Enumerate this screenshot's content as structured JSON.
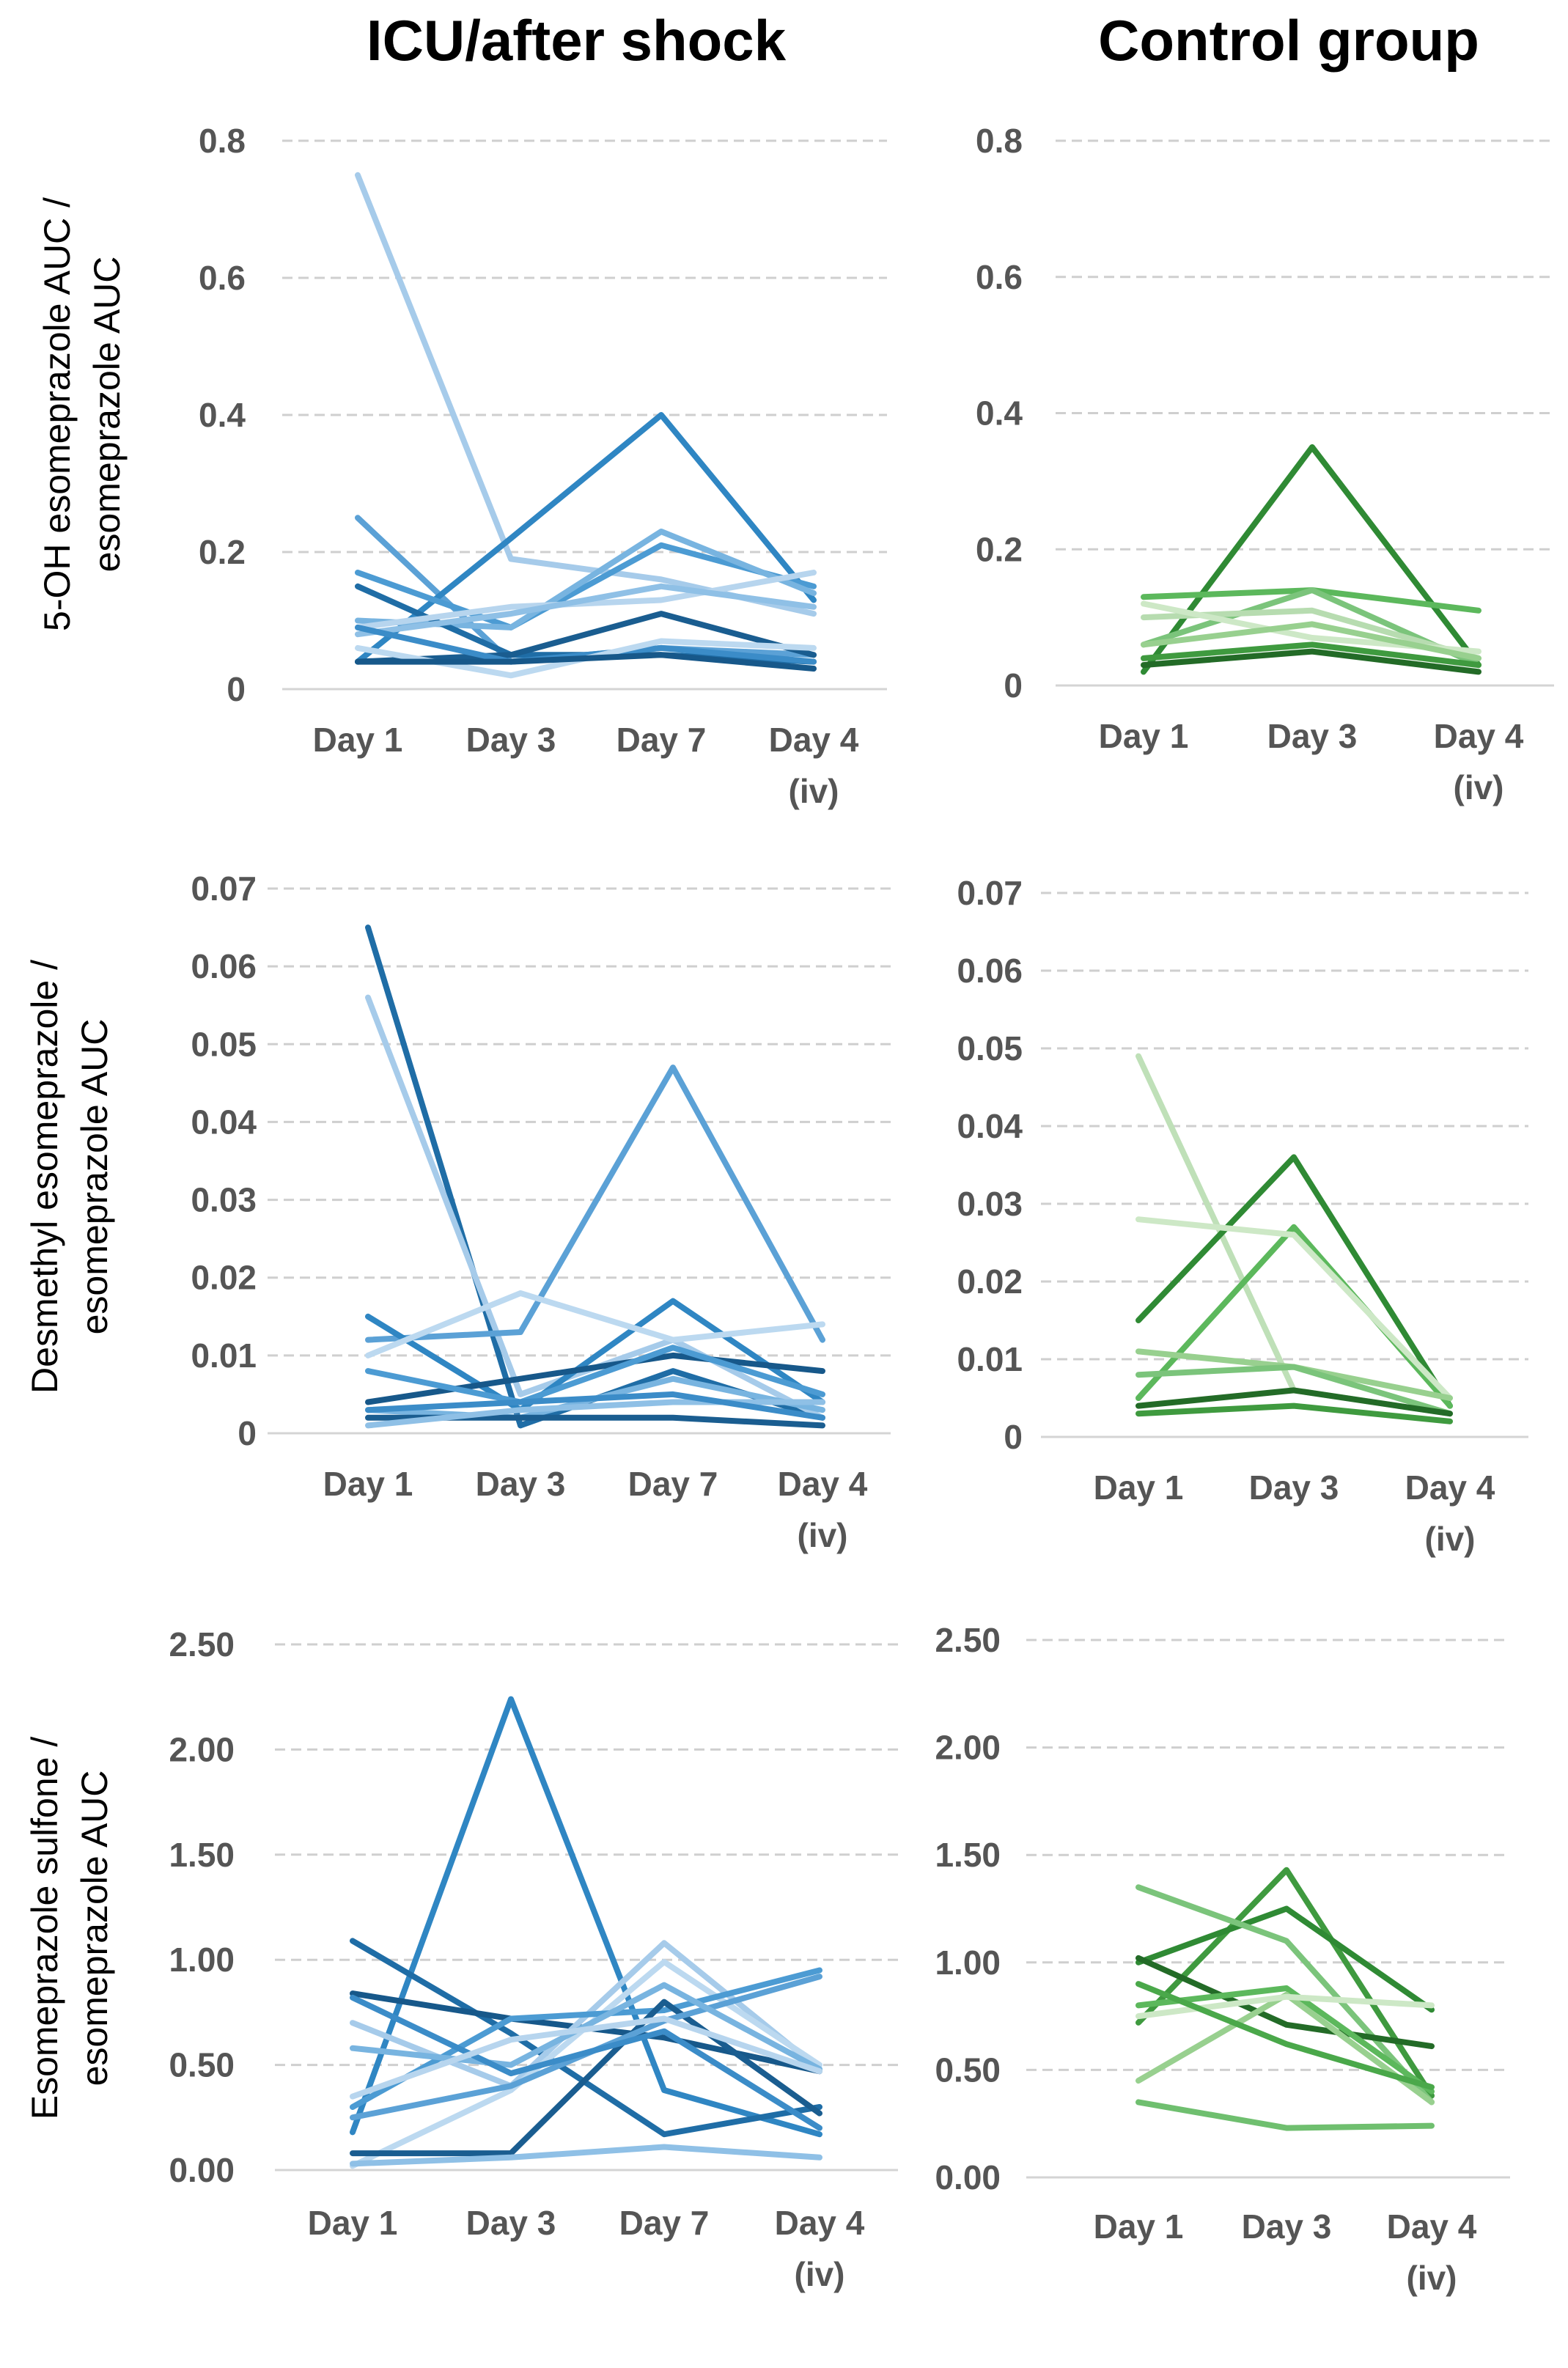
{
  "columns": [
    "ICU/after shock",
    "Control group"
  ],
  "row_labels": [
    [
      "5-OH esomeprazole AUC /",
      "esomeprazole AUC"
    ],
    [
      "Desmethyl esomeprazole /",
      "esomeprazole AUC"
    ],
    [
      "Esomeprazole sulfone /",
      "esomeprazole AUC"
    ]
  ],
  "chart_data": [
    {
      "type": "line",
      "panel": "5-OH ICU",
      "title": "ICU/after shock",
      "categories": [
        [
          "Day 1"
        ],
        [
          "Day 3"
        ],
        [
          "Day 7"
        ],
        [
          "Day 4",
          "(iv)"
        ]
      ],
      "ylim": [
        0,
        0.8
      ],
      "yticks": [
        "0",
        "0.2",
        "0.4",
        "0.6",
        "0.8"
      ],
      "ytick_values": [
        0,
        0.2,
        0.4,
        0.6,
        0.8
      ],
      "series": [
        {
          "color": "#a6cbea",
          "values": [
            0.75,
            0.19,
            0.16,
            0.11
          ]
        },
        {
          "color": "#5ba1d6",
          "values": [
            0.25,
            0.04,
            0.06,
            0.05
          ]
        },
        {
          "color": "#2f86c3",
          "values": [
            0.04,
            0.22,
            0.4,
            0.13
          ]
        },
        {
          "color": "#4c9bd3",
          "values": [
            0.17,
            0.09,
            0.21,
            0.15
          ]
        },
        {
          "color": "#78b4e0",
          "values": [
            0.1,
            0.09,
            0.23,
            0.14
          ]
        },
        {
          "color": "#1f6da6",
          "values": [
            0.15,
            0.05,
            0.05,
            0.04
          ]
        },
        {
          "color": "#b7d5ee",
          "values": [
            0.09,
            0.12,
            0.13,
            0.17
          ]
        },
        {
          "color": "#8fc0e6",
          "values": [
            0.08,
            0.11,
            0.15,
            0.12
          ]
        },
        {
          "color": "#1a5d90",
          "values": [
            0.04,
            0.05,
            0.11,
            0.05
          ]
        },
        {
          "color": "#3b8cc8",
          "values": [
            0.09,
            0.04,
            0.06,
            0.04
          ]
        },
        {
          "color": "#bcd9f0",
          "values": [
            0.06,
            0.02,
            0.07,
            0.06
          ]
        },
        {
          "color": "#17588a",
          "values": [
            0.04,
            0.04,
            0.05,
            0.03
          ]
        }
      ]
    },
    {
      "type": "line",
      "panel": "5-OH Control",
      "title": "Control group",
      "categories": [
        [
          "Day 1"
        ],
        [
          "Day 3"
        ],
        [
          "Day 4",
          "(iv)"
        ]
      ],
      "ylim": [
        0,
        0.8
      ],
      "yticks": [
        "0",
        "0.2",
        "0.4",
        "0.6",
        "0.8"
      ],
      "ytick_values": [
        0,
        0.2,
        0.4,
        0.6,
        0.8
      ],
      "series": [
        {
          "color": "#2f8a34",
          "values": [
            0.02,
            0.35,
            0.03
          ]
        },
        {
          "color": "#5cb85c",
          "values": [
            0.13,
            0.14,
            0.11
          ]
        },
        {
          "color": "#7bc47b",
          "values": [
            0.06,
            0.14,
            0.03
          ]
        },
        {
          "color": "#b7dcb0",
          "values": [
            0.1,
            0.11,
            0.04
          ]
        },
        {
          "color": "#cde8c6",
          "values": [
            0.12,
            0.07,
            0.05
          ]
        },
        {
          "color": "#3f9a3f",
          "values": [
            0.04,
            0.06,
            0.03
          ]
        },
        {
          "color": "#236b27",
          "values": [
            0.03,
            0.05,
            0.02
          ]
        },
        {
          "color": "#98d08f",
          "values": [
            0.06,
            0.09,
            0.04
          ]
        }
      ]
    },
    {
      "type": "line",
      "panel": "Desmethyl ICU",
      "title": "ICU/after shock",
      "categories": [
        [
          "Day 1"
        ],
        [
          "Day 3"
        ],
        [
          "Day 7"
        ],
        [
          "Day 4",
          "(iv)"
        ]
      ],
      "ylim": [
        0,
        0.07
      ],
      "yticks": [
        "0",
        "0.01",
        "0.02",
        "0.03",
        "0.04",
        "0.05",
        "0.06",
        "0.07"
      ],
      "ytick_values": [
        0,
        0.01,
        0.02,
        0.03,
        0.04,
        0.05,
        0.06,
        0.07
      ],
      "series": [
        {
          "color": "#1f6da6",
          "values": [
            0.065,
            0.001,
            0.008,
            0.002
          ]
        },
        {
          "color": "#a6cbea",
          "values": [
            0.056,
            0.005,
            0.012,
            0.002
          ]
        },
        {
          "color": "#5ba1d6",
          "values": [
            0.012,
            0.013,
            0.047,
            0.012
          ]
        },
        {
          "color": "#2f86c3",
          "values": [
            0.015,
            0.003,
            0.017,
            0.004
          ]
        },
        {
          "color": "#bcd9f0",
          "values": [
            0.01,
            0.018,
            0.012,
            0.014
          ]
        },
        {
          "color": "#17588a",
          "values": [
            0.004,
            0.007,
            0.01,
            0.008
          ]
        },
        {
          "color": "#4c9bd3",
          "values": [
            0.008,
            0.004,
            0.011,
            0.005
          ]
        },
        {
          "color": "#78b4e0",
          "values": [
            0.003,
            0.002,
            0.007,
            0.003
          ]
        },
        {
          "color": "#1a5d90",
          "values": [
            0.002,
            0.002,
            0.002,
            0.001
          ]
        },
        {
          "color": "#8fc0e6",
          "values": [
            0.001,
            0.003,
            0.004,
            0.004
          ]
        },
        {
          "color": "#3b8cc8",
          "values": [
            0.003,
            0.004,
            0.005,
            0.002
          ]
        }
      ]
    },
    {
      "type": "line",
      "panel": "Desmethyl Control",
      "title": "Control group",
      "categories": [
        [
          "Day 1"
        ],
        [
          "Day 3"
        ],
        [
          "Day 4",
          "(iv)"
        ]
      ],
      "ylim": [
        0,
        0.07
      ],
      "yticks": [
        "0",
        "0.01",
        "0.02",
        "0.03",
        "0.04",
        "0.05",
        "0.06",
        "0.07"
      ],
      "ytick_values": [
        0,
        0.01,
        0.02,
        0.03,
        0.04,
        0.05,
        0.06,
        0.07
      ],
      "series": [
        {
          "color": "#bfe0b8",
          "values": [
            0.049,
            0.006,
            0.003
          ]
        },
        {
          "color": "#2f8a34",
          "values": [
            0.015,
            0.036,
            0.004
          ]
        },
        {
          "color": "#5cb85c",
          "values": [
            0.005,
            0.027,
            0.004
          ]
        },
        {
          "color": "#cde8c6",
          "values": [
            0.028,
            0.026,
            0.005
          ]
        },
        {
          "color": "#98d08f",
          "values": [
            0.011,
            0.009,
            0.005
          ]
        },
        {
          "color": "#7bc47b",
          "values": [
            0.008,
            0.009,
            0.003
          ]
        },
        {
          "color": "#236b27",
          "values": [
            0.004,
            0.006,
            0.003
          ]
        },
        {
          "color": "#3f9a3f",
          "values": [
            0.003,
            0.004,
            0.002
          ]
        }
      ]
    },
    {
      "type": "line",
      "panel": "Sulfone ICU",
      "title": "ICU/after shock",
      "categories": [
        [
          "Day 1"
        ],
        [
          "Day 3"
        ],
        [
          "Day 7"
        ],
        [
          "Day 4",
          "(iv)"
        ]
      ],
      "ylim": [
        0,
        2.5
      ],
      "yticks": [
        "0.00",
        "0.50",
        "1.00",
        "1.50",
        "2.00",
        "2.50"
      ],
      "ytick_values": [
        0,
        0.5,
        1.0,
        1.5,
        2.0,
        2.5
      ],
      "series": [
        {
          "color": "#2f86c3",
          "values": [
            0.18,
            2.24,
            0.38,
            0.17
          ]
        },
        {
          "color": "#1f6da6",
          "values": [
            1.09,
            0.65,
            0.17,
            0.3
          ]
        },
        {
          "color": "#17588a",
          "values": [
            0.84,
            0.72,
            0.63,
            0.47
          ]
        },
        {
          "color": "#a6cbea",
          "values": [
            0.7,
            0.4,
            1.08,
            0.48
          ]
        },
        {
          "color": "#bcd9f0",
          "values": [
            0.02,
            0.38,
            0.99,
            0.5
          ]
        },
        {
          "color": "#4c9bd3",
          "values": [
            0.3,
            0.72,
            0.76,
            0.95
          ]
        },
        {
          "color": "#1a5d90",
          "values": [
            0.08,
            0.08,
            0.8,
            0.27
          ]
        },
        {
          "color": "#5ba1d6",
          "values": [
            0.25,
            0.4,
            0.71,
            0.92
          ]
        },
        {
          "color": "#78b4e0",
          "values": [
            0.58,
            0.5,
            0.88,
            0.48
          ]
        },
        {
          "color": "#3b8cc8",
          "values": [
            0.82,
            0.46,
            0.66,
            0.2
          ]
        },
        {
          "color": "#8fc0e6",
          "values": [
            0.03,
            0.06,
            0.11,
            0.06
          ]
        },
        {
          "color": "#b7d5ee",
          "values": [
            0.35,
            0.62,
            0.72,
            0.47
          ]
        }
      ]
    },
    {
      "type": "line",
      "panel": "Sulfone Control",
      "title": "Control group",
      "categories": [
        [
          "Day 1"
        ],
        [
          "Day 3"
        ],
        [
          "Day 4",
          "(iv)"
        ]
      ],
      "ylim": [
        0,
        2.5
      ],
      "yticks": [
        "0.00",
        "0.50",
        "1.00",
        "1.50",
        "2.00",
        "2.50"
      ],
      "ytick_values": [
        0,
        0.5,
        1.0,
        1.5,
        2.0,
        2.5
      ],
      "series": [
        {
          "color": "#3f9a3f",
          "values": [
            0.72,
            1.43,
            0.38
          ]
        },
        {
          "color": "#2f8a34",
          "values": [
            1.0,
            1.25,
            0.78
          ]
        },
        {
          "color": "#7bc47b",
          "values": [
            1.35,
            1.1,
            0.35
          ]
        },
        {
          "color": "#236b27",
          "values": [
            1.02,
            0.71,
            0.61
          ]
        },
        {
          "color": "#5cb85c",
          "values": [
            0.8,
            0.88,
            0.4
          ]
        },
        {
          "color": "#98d08f",
          "values": [
            0.45,
            0.85,
            0.35
          ]
        },
        {
          "color": "#cde8c6",
          "values": [
            0.75,
            0.84,
            0.8
          ]
        },
        {
          "color": "#4aa84a",
          "values": [
            0.9,
            0.62,
            0.42
          ]
        },
        {
          "color": "#6fbf6f",
          "values": [
            0.35,
            0.23,
            0.24
          ]
        }
      ]
    }
  ]
}
